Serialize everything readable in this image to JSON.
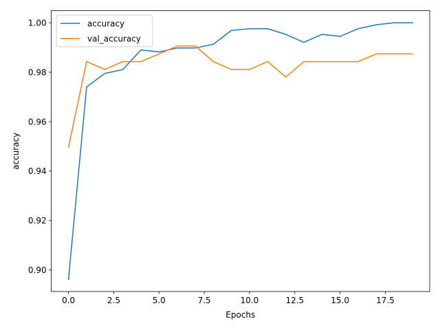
{
  "chart_data": {
    "type": "line",
    "xlabel": "Epochs",
    "ylabel": "accuracy",
    "xlim": [
      -0.95,
      19.95
    ],
    "ylim": [
      0.8913,
      1.0049
    ],
    "xticks": [
      0.0,
      2.5,
      5.0,
      7.5,
      10.0,
      12.5,
      15.0,
      17.5
    ],
    "xtick_labels": [
      "0.0",
      "2.5",
      "5.0",
      "7.5",
      "10.0",
      "12.5",
      "15.0",
      "17.5"
    ],
    "yticks": [
      0.9,
      0.92,
      0.94,
      0.96,
      0.98,
      1.0
    ],
    "ytick_labels": [
      "0.90",
      "0.92",
      "0.94",
      "0.96",
      "0.98",
      "1.00"
    ],
    "grid": false,
    "legend_position": "upper-left",
    "x": [
      0,
      1,
      2,
      3,
      4,
      5,
      6,
      7,
      8,
      9,
      10,
      11,
      12,
      13,
      14,
      15,
      16,
      17,
      18,
      19
    ],
    "series": [
      {
        "name": "accuracy",
        "color": "#1f77b4",
        "values": [
          0.8962,
          0.974,
          0.9795,
          0.9811,
          0.989,
          0.9882,
          0.9898,
          0.9898,
          0.9913,
          0.9969,
          0.9976,
          0.9976,
          0.9953,
          0.9921,
          0.9953,
          0.9945,
          0.9976,
          0.9992,
          1.0,
          1.0
        ]
      },
      {
        "name": "val_accuracy",
        "color": "#ff7f0e",
        "values": [
          0.9497,
          0.9843,
          0.9811,
          0.9843,
          0.9843,
          0.9874,
          0.9906,
          0.9906,
          0.9843,
          0.9811,
          0.9811,
          0.9843,
          0.978,
          0.9843,
          0.9843,
          0.9843,
          0.9843,
          0.9874,
          0.9874,
          0.9874
        ]
      }
    ]
  }
}
